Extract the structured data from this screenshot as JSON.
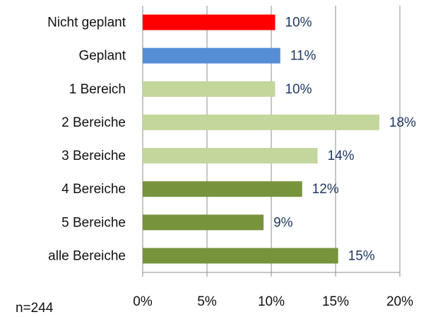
{
  "chart_data": {
    "type": "bar",
    "orientation": "horizontal",
    "categories": [
      "Nicht geplant",
      "Geplant",
      "1 Bereich",
      "2 Bereiche",
      "3 Bereiche",
      "4 Bereiche",
      "5 Bereiche",
      "alle Bereiche"
    ],
    "values": [
      10.3,
      10.7,
      10.3,
      18.4,
      13.6,
      12.4,
      9.4,
      15.2
    ],
    "value_labels": [
      "10%",
      "11%",
      "10%",
      "18%",
      "14%",
      "12%",
      "9%",
      "15%"
    ],
    "colors": [
      "#ff0000",
      "#558ed5",
      "#c3d69b",
      "#c3d69b",
      "#c3d69b",
      "#77933c",
      "#77933c",
      "#77933c"
    ],
    "xlim": [
      0,
      20
    ],
    "xticks": [
      {
        "value": 0,
        "label": "0%"
      },
      {
        "value": 5,
        "label": "5%"
      },
      {
        "value": 10,
        "label": "10%"
      },
      {
        "value": 15,
        "label": "15%"
      },
      {
        "value": 20,
        "label": "20%"
      }
    ],
    "grid": true,
    "annotation": "n=244"
  }
}
